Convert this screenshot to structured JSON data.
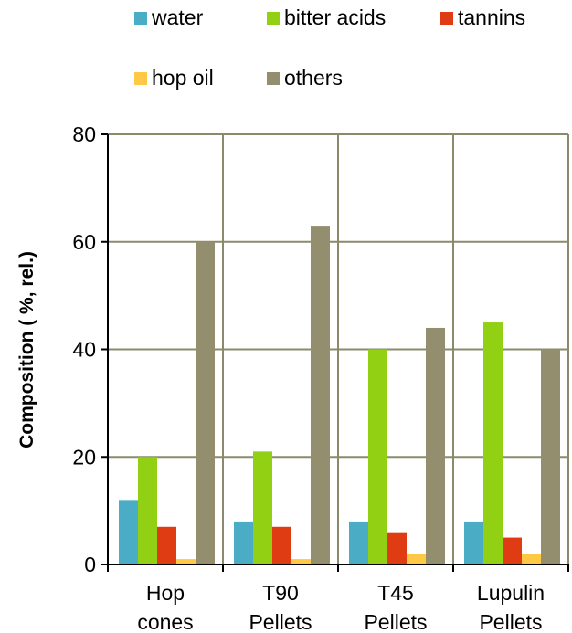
{
  "chart_data": {
    "type": "bar",
    "title": "",
    "xlabel": "",
    "ylabel": "Composition ( %, rel.)",
    "ylim": [
      0,
      80
    ],
    "yticks": [
      0,
      20,
      40,
      60,
      80
    ],
    "grid": true,
    "legend_position": "top",
    "categories": [
      [
        "Hop",
        "cones"
      ],
      [
        "T90",
        "Pellets"
      ],
      [
        "T45",
        "Pellets"
      ],
      [
        "Lupulin",
        "Pellets"
      ]
    ],
    "series": [
      {
        "name": "water",
        "color": "#4bacc6",
        "values": [
          12,
          8,
          8,
          8
        ]
      },
      {
        "name": "bitter acids",
        "color": "#92d013",
        "values": [
          20,
          21,
          40,
          45
        ]
      },
      {
        "name": "tannins",
        "color": "#e03c14",
        "values": [
          7,
          7,
          6,
          5
        ]
      },
      {
        "name": "hop oil",
        "color": "#ffc845",
        "values": [
          1,
          1,
          2,
          2
        ]
      },
      {
        "name": "others",
        "color": "#938f6e",
        "values": [
          60,
          63,
          44,
          40
        ]
      }
    ]
  }
}
